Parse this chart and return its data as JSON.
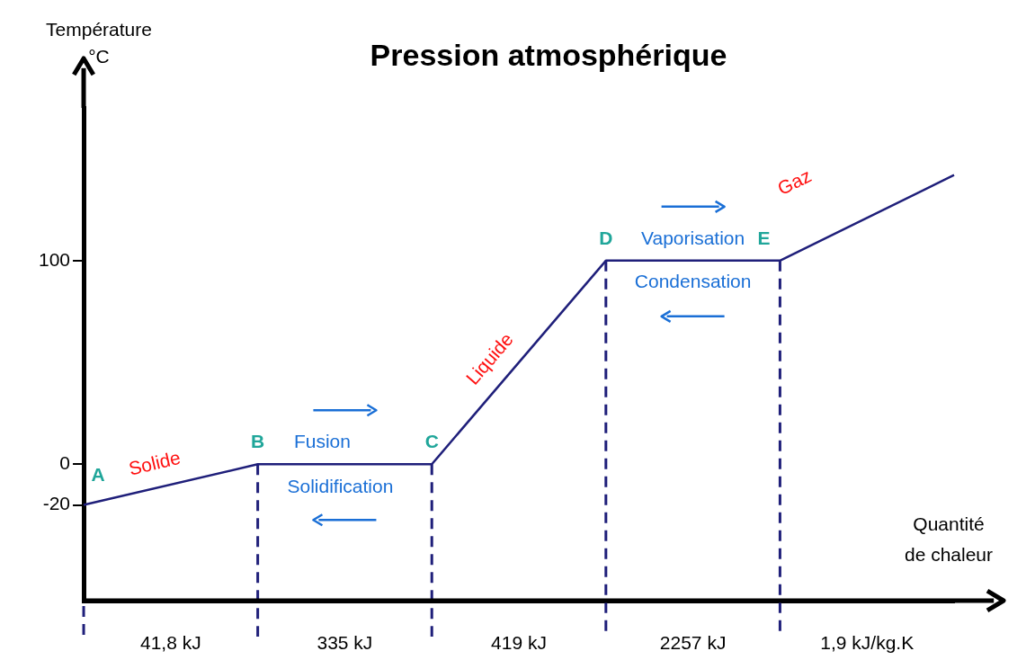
{
  "chart_data": {
    "type": "line",
    "title": "Pression atmosphérique",
    "ylabel": "Température\n°C",
    "xlabel": "Quantité\nde chaleur",
    "categories": [
      null,
      null,
      null,
      null,
      null,
      null
    ],
    "series": [
      {
        "color": "#1f1f7a",
        "values": [
          -20,
          0,
          0,
          100,
          100,
          142
        ]
      }
    ],
    "ylim": [
      -67,
      175
    ],
    "yticks": [
      -20,
      0,
      100
    ],
    "grid": false,
    "legend": false,
    "marker": "none",
    "line_style": "solid",
    "annotations": [
      "A",
      "B",
      "C",
      "D",
      "E",
      "Solide",
      "Fusion",
      "Solidification",
      "Liquide",
      "Vaporisation",
      "Condensation",
      "Gaz",
      "41,8 kJ",
      "335 kJ",
      "419 kJ",
      "2257 kJ",
      "1,9 kJ/kg.K"
    ]
  }
}
